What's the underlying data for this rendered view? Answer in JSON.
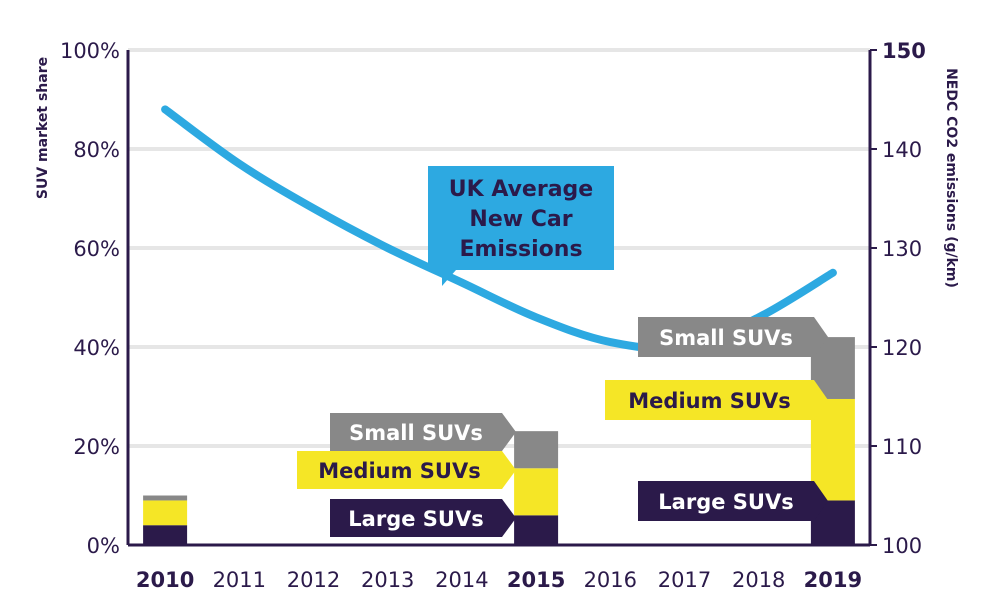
{
  "chart_data": {
    "type": "bar",
    "categories": [
      "2010",
      "2011",
      "2012",
      "2013",
      "2014",
      "2015",
      "2016",
      "2017",
      "2018",
      "2019"
    ],
    "highlighted_categories": [
      "2010",
      "2015",
      "2019"
    ],
    "bars": [
      {
        "category": "2010",
        "large": 4,
        "medium": 5,
        "small": 1
      },
      {
        "category": "2015",
        "large": 6,
        "medium": 9.5,
        "small": 7.5
      },
      {
        "category": "2019",
        "large": 9,
        "medium": 20.5,
        "small": 12.5
      }
    ],
    "segment_labels": {
      "large": "Large SUVs",
      "medium": "Medium SUVs",
      "small": "Small SUVs"
    },
    "line": {
      "name": "UK Average New Car Emissions",
      "callout_lines": [
        "UK Average",
        "New Car",
        "Emissions"
      ],
      "x": [
        "2010",
        "2011",
        "2012",
        "2013",
        "2014",
        "2015",
        "2016",
        "2017",
        "2018",
        "2019"
      ],
      "values": [
        144,
        138.5,
        134,
        130,
        126.5,
        123,
        120.5,
        120,
        123,
        127.5
      ]
    },
    "y_left": {
      "label": "SUV market share",
      "ylim": [
        0,
        100
      ],
      "ticks": [
        "0%",
        "20%",
        "40%",
        "60%",
        "80%",
        "100%"
      ]
    },
    "y_right": {
      "label": "NEDC CO2 emissions (g/km)",
      "ylim": [
        100,
        150
      ],
      "ticks": [
        "100",
        "110",
        "120",
        "130",
        "140",
        "150"
      ]
    },
    "grid": true,
    "colors": {
      "large": "#2b1a4a",
      "medium": "#f5e626",
      "small": "#888888",
      "line": "#2da9e1",
      "grid": "#e6e6e6",
      "axis": "#2b1a4a"
    }
  }
}
